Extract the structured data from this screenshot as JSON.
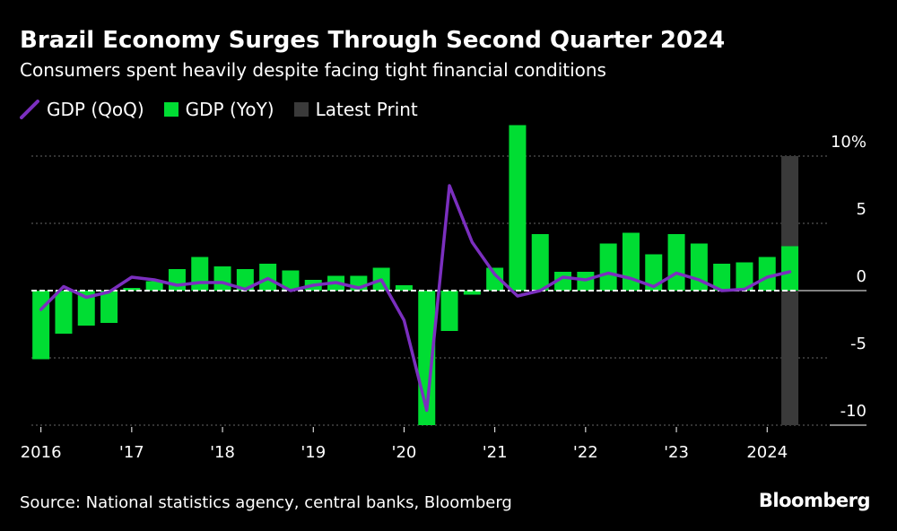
{
  "header": {
    "title": "Brazil Economy Surges Through Second Quarter 2024",
    "subtitle": "Consumers spent heavily despite facing tight financial conditions"
  },
  "legend": {
    "qoq_label": "GDP (QoQ)",
    "yoy_label": "GDP (YoY)",
    "latest_label": "Latest Print"
  },
  "colors": {
    "background": "#000000",
    "qoq_line": "#7b2fbf",
    "yoy_bars": "#00dd33",
    "latest_print": "#3a3a3a",
    "grid": "#666666",
    "text": "#ffffff"
  },
  "footer": {
    "source": "Source: National statistics agency, central banks, Bloomberg",
    "brand": "Bloomberg"
  },
  "chart_data": {
    "type": "bar",
    "quarters": [
      "2016Q1",
      "2016Q2",
      "2016Q3",
      "2016Q4",
      "2017Q1",
      "2017Q2",
      "2017Q3",
      "2017Q4",
      "2018Q1",
      "2018Q2",
      "2018Q3",
      "2018Q4",
      "2019Q1",
      "2019Q2",
      "2019Q3",
      "2019Q4",
      "2020Q1",
      "2020Q2",
      "2020Q3",
      "2020Q4",
      "2021Q1",
      "2021Q2",
      "2021Q3",
      "2021Q4",
      "2022Q1",
      "2022Q2",
      "2022Q3",
      "2022Q4",
      "2023Q1",
      "2023Q2",
      "2023Q3",
      "2023Q4",
      "2024Q1",
      "2024Q2"
    ],
    "series": [
      {
        "name": "GDP (QoQ)",
        "type": "line",
        "values": [
          -1.4,
          0.3,
          -0.5,
          -0.1,
          1.0,
          0.8,
          0.4,
          0.6,
          0.6,
          0.1,
          0.9,
          0.0,
          0.4,
          0.6,
          0.2,
          0.8,
          -2.2,
          -8.9,
          7.8,
          3.6,
          1.2,
          -0.4,
          0.0,
          1.0,
          0.8,
          1.3,
          0.9,
          0.3,
          1.3,
          0.8,
          0.0,
          0.1,
          1.0,
          1.4
        ]
      },
      {
        "name": "GDP (YoY)",
        "type": "bar",
        "values": [
          -5.1,
          -3.2,
          -2.6,
          -2.4,
          0.2,
          0.7,
          1.6,
          2.5,
          1.8,
          1.6,
          2.0,
          1.5,
          0.8,
          1.1,
          1.1,
          1.7,
          0.4,
          -10.0,
          -3.0,
          -0.3,
          1.7,
          12.3,
          4.2,
          1.4,
          1.4,
          3.5,
          4.3,
          2.7,
          4.2,
          3.5,
          2.0,
          2.1,
          2.5,
          3.3
        ]
      }
    ],
    "latest_print": "2024Q2",
    "x_tick_labels": [
      "2016",
      "'17",
      "'18",
      "'19",
      "'20",
      "'21",
      "'22",
      "'23",
      "2024"
    ],
    "y_ticks": [
      10,
      5,
      0,
      -5,
      -10
    ],
    "y_tick_labels": [
      "10%",
      "5",
      "0",
      "-5",
      "-10"
    ],
    "ylim": [
      -10,
      12.3
    ],
    "y_axis_position": "right",
    "grid": "horizontal dotted",
    "legend_placement": "top-left"
  }
}
